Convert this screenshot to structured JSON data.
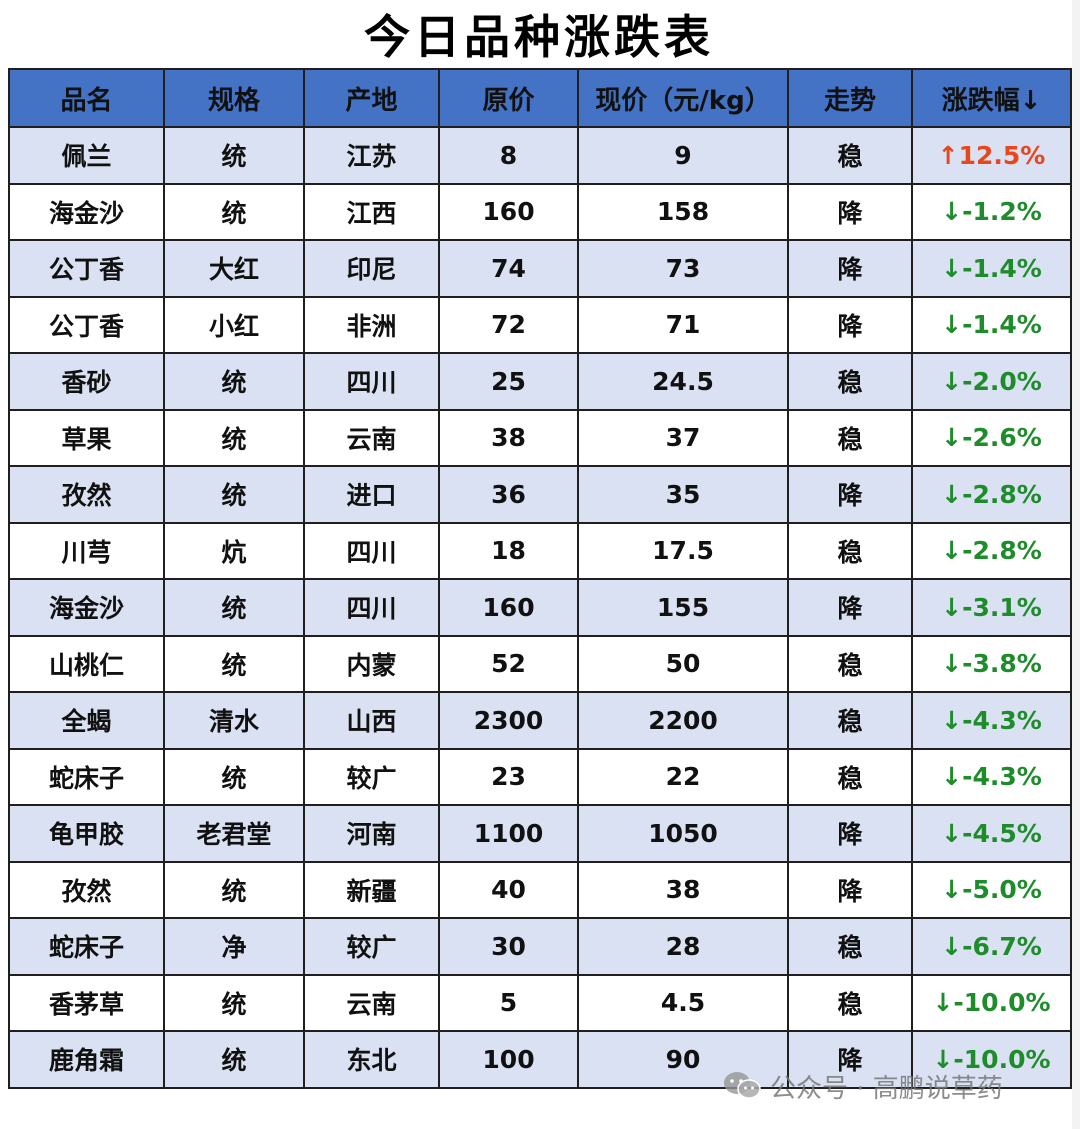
{
  "title": "今日品种涨跌表",
  "headers": [
    "品名",
    "规格",
    "产地",
    "原价",
    "现价（元/kg）",
    "走势",
    "涨跌幅↓"
  ],
  "rows": [
    {
      "name": "佩兰",
      "spec": "统",
      "origin": "江苏",
      "old_price": "8",
      "new_price": "9",
      "trend": "稳",
      "change": "↑12.5%",
      "dir": "up"
    },
    {
      "name": "海金沙",
      "spec": "统",
      "origin": "江西",
      "old_price": "160",
      "new_price": "158",
      "trend": "降",
      "change": "↓-1.2%",
      "dir": "down"
    },
    {
      "name": "公丁香",
      "spec": "大红",
      "origin": "印尼",
      "old_price": "74",
      "new_price": "73",
      "trend": "降",
      "change": "↓-1.4%",
      "dir": "down"
    },
    {
      "name": "公丁香",
      "spec": "小红",
      "origin": "非洲",
      "old_price": "72",
      "new_price": "71",
      "trend": "降",
      "change": "↓-1.4%",
      "dir": "down"
    },
    {
      "name": "香砂",
      "spec": "统",
      "origin": "四川",
      "old_price": "25",
      "new_price": "24.5",
      "trend": "稳",
      "change": "↓-2.0%",
      "dir": "down"
    },
    {
      "name": "草果",
      "spec": "统",
      "origin": "云南",
      "old_price": "38",
      "new_price": "37",
      "trend": "稳",
      "change": "↓-2.6%",
      "dir": "down"
    },
    {
      "name": "孜然",
      "spec": "统",
      "origin": "进口",
      "old_price": "36",
      "new_price": "35",
      "trend": "降",
      "change": "↓-2.8%",
      "dir": "down"
    },
    {
      "name": "川芎",
      "spec": "炕",
      "origin": "四川",
      "old_price": "18",
      "new_price": "17.5",
      "trend": "稳",
      "change": "↓-2.8%",
      "dir": "down"
    },
    {
      "name": "海金沙",
      "spec": "统",
      "origin": "四川",
      "old_price": "160",
      "new_price": "155",
      "trend": "降",
      "change": "↓-3.1%",
      "dir": "down"
    },
    {
      "name": "山桃仁",
      "spec": "统",
      "origin": "内蒙",
      "old_price": "52",
      "new_price": "50",
      "trend": "稳",
      "change": "↓-3.8%",
      "dir": "down"
    },
    {
      "name": "全蝎",
      "spec": "清水",
      "origin": "山西",
      "old_price": "2300",
      "new_price": "2200",
      "trend": "稳",
      "change": "↓-4.3%",
      "dir": "down"
    },
    {
      "name": "蛇床子",
      "spec": "统",
      "origin": "较广",
      "old_price": "23",
      "new_price": "22",
      "trend": "稳",
      "change": "↓-4.3%",
      "dir": "down"
    },
    {
      "name": "龟甲胶",
      "spec": "老君堂",
      "origin": "河南",
      "old_price": "1100",
      "new_price": "1050",
      "trend": "降",
      "change": "↓-4.5%",
      "dir": "down"
    },
    {
      "name": "孜然",
      "spec": "统",
      "origin": "新疆",
      "old_price": "40",
      "new_price": "38",
      "trend": "降",
      "change": "↓-5.0%",
      "dir": "down"
    },
    {
      "name": "蛇床子",
      "spec": "净",
      "origin": "较广",
      "old_price": "30",
      "new_price": "28",
      "trend": "稳",
      "change": "↓-6.7%",
      "dir": "down"
    },
    {
      "name": "香茅草",
      "spec": "统",
      "origin": "云南",
      "old_price": "5",
      "new_price": "4.5",
      "trend": "稳",
      "change": "↓-10.0%",
      "dir": "down"
    },
    {
      "name": "鹿角霜",
      "spec": "统",
      "origin": "东北",
      "old_price": "100",
      "new_price": "90",
      "trend": "降",
      "change": "↓-10.0%",
      "dir": "down"
    }
  ],
  "watermark": {
    "text": "公众号 · 高鹏说草药",
    "icon": "wechat-icon"
  },
  "colors": {
    "header_bg": "#4472c4",
    "row_alt_bg": "#d9e1f2",
    "up": "#e8461c",
    "down": "#1e8c2a"
  }
}
